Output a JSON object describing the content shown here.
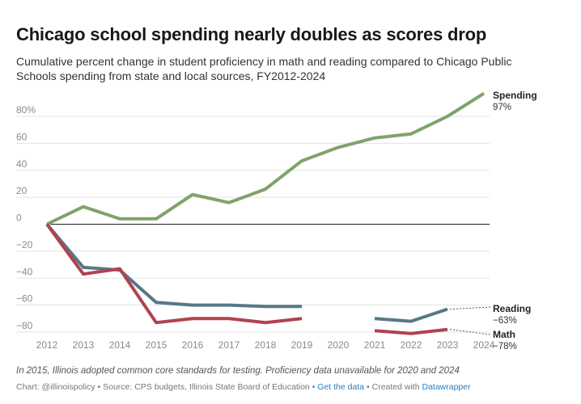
{
  "title": "Chicago school spending nearly doubles as scores drop",
  "subtitle": "Cumulative percent change in student proficiency in math and reading compared to Chicago Public Schools spending from state and local sources, FY2012-2024",
  "note": "In 2015, Illinois adopted common core standards for testing. Proficiency data unavailable for 2020 and 2024",
  "footer": {
    "chart_by": "Chart: @illinoispolicy",
    "sep": " • ",
    "source": "Source: CPS budgets, Illinois State Board of Education",
    "get_data": "Get the data",
    "created": "Created with ",
    "tool": "Datawrapper",
    "link_color": "#2b7dbb"
  },
  "chart_data": {
    "type": "line",
    "x": [
      2012,
      2013,
      2014,
      2015,
      2016,
      2017,
      2018,
      2019,
      2020,
      2021,
      2022,
      2023,
      2024
    ],
    "xlim": [
      2012,
      2024
    ],
    "ylim": [
      -80,
      80
    ],
    "yticks": [
      80,
      60,
      40,
      20,
      0,
      -20,
      -40,
      -60,
      -80
    ],
    "ytick_labels": [
      "80%",
      "60",
      "40",
      "20",
      "0",
      "−20",
      "−40",
      "−60",
      "−80"
    ],
    "grid": true,
    "series": [
      {
        "name": "Spending",
        "end_label": "97%",
        "color": "#7fa36a",
        "values": [
          0,
          13,
          4,
          4,
          22,
          16,
          26,
          47,
          57,
          64,
          67,
          80,
          97
        ]
      },
      {
        "name": "Reading",
        "end_label": "−63%",
        "color": "#587887",
        "values": [
          0,
          -32,
          -34,
          -58,
          -60,
          -60,
          -61,
          -61,
          null,
          -70,
          -72,
          -63,
          null
        ]
      },
      {
        "name": "Math",
        "end_label": "−78%",
        "color": "#b0434f",
        "values": [
          0,
          -37,
          -33,
          -73,
          -70,
          -70,
          -73,
          -70,
          null,
          -79,
          -81,
          -78,
          null
        ]
      }
    ]
  }
}
